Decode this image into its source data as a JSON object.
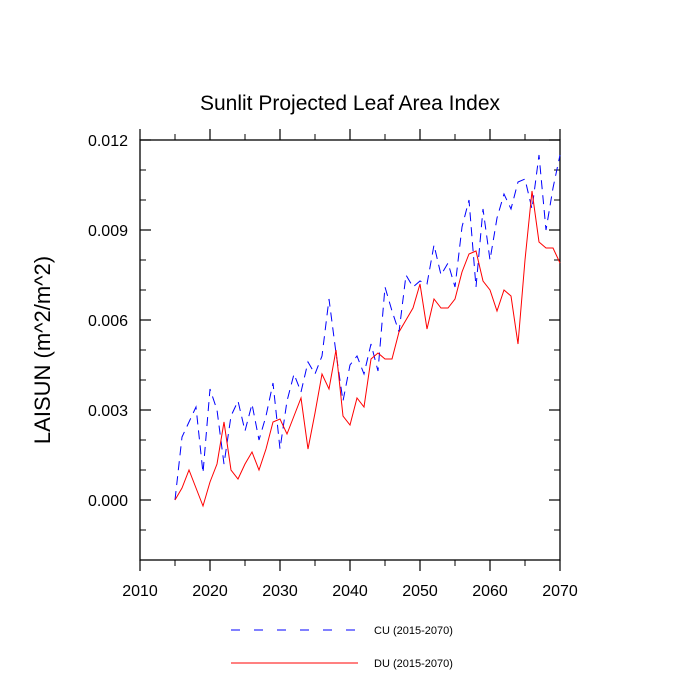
{
  "chart_data": {
    "type": "line",
    "title": "Sunlit Projected Leaf Area Index",
    "xlabel": "",
    "ylabel": "LAISUN  (m^2/m^2)",
    "xlim": [
      2010,
      2070
    ],
    "ylim": [
      -0.002,
      0.012
    ],
    "xticks": [
      2010,
      2020,
      2030,
      2040,
      2050,
      2060,
      2070
    ],
    "xtick_labels": [
      "2010",
      "2020",
      "2030",
      "2040",
      "2050",
      "2060",
      "2070"
    ],
    "yticks": [
      0.0,
      0.003,
      0.006,
      0.009,
      0.012
    ],
    "ytick_labels": [
      "0.000",
      "0.003",
      "0.006",
      "0.009",
      "0.012"
    ],
    "legend_position": "bottom-center",
    "x": [
      2015,
      2016,
      2017,
      2018,
      2019,
      2020,
      2021,
      2022,
      2023,
      2024,
      2025,
      2026,
      2027,
      2028,
      2029,
      2030,
      2031,
      2032,
      2033,
      2034,
      2035,
      2036,
      2037,
      2038,
      2039,
      2040,
      2041,
      2042,
      2043,
      2044,
      2045,
      2046,
      2047,
      2048,
      2049,
      2050,
      2051,
      2052,
      2053,
      2054,
      2055,
      2056,
      2057,
      2058,
      2059,
      2060,
      2061,
      2062,
      2063,
      2064,
      2065,
      2066,
      2067,
      2068,
      2069,
      2070
    ],
    "series": [
      {
        "name": "CU (2015-2070)",
        "color": "#0000ff",
        "dash": "dashed",
        "values": [
          0.0,
          0.0021,
          0.0026,
          0.0031,
          0.0009,
          0.0037,
          0.003,
          0.0012,
          0.0028,
          0.0033,
          0.0023,
          0.0032,
          0.002,
          0.0028,
          0.0039,
          0.0017,
          0.0033,
          0.0042,
          0.0036,
          0.0046,
          0.0042,
          0.0048,
          0.0067,
          0.0049,
          0.0033,
          0.0045,
          0.0048,
          0.0042,
          0.0052,
          0.0043,
          0.0071,
          0.0063,
          0.0056,
          0.0075,
          0.0071,
          0.0073,
          0.0072,
          0.0085,
          0.0075,
          0.0079,
          0.0071,
          0.0091,
          0.01,
          0.0071,
          0.0097,
          0.008,
          0.0094,
          0.0102,
          0.0097,
          0.0106,
          0.0107,
          0.0097,
          0.0115,
          0.009,
          0.0104,
          0.0115
        ]
      },
      {
        "name": "DU (2015-2070)",
        "color": "#ff0000",
        "dash": "solid",
        "values": [
          0.0,
          0.0004,
          0.001,
          0.0004,
          -0.0002,
          0.0006,
          0.0012,
          0.0026,
          0.001,
          0.0007,
          0.0012,
          0.0016,
          0.001,
          0.0017,
          0.0026,
          0.0027,
          0.0022,
          0.0028,
          0.0034,
          0.0017,
          0.0029,
          0.0042,
          0.0037,
          0.005,
          0.0028,
          0.0025,
          0.0034,
          0.0031,
          0.0047,
          0.0049,
          0.0047,
          0.0047,
          0.0056,
          0.006,
          0.0064,
          0.0072,
          0.0057,
          0.0067,
          0.0064,
          0.0064,
          0.0067,
          0.0076,
          0.0082,
          0.0083,
          0.0073,
          0.007,
          0.0063,
          0.007,
          0.0068,
          0.0052,
          0.008,
          0.0103,
          0.0086,
          0.0084,
          0.0084,
          0.0079
        ]
      }
    ]
  }
}
